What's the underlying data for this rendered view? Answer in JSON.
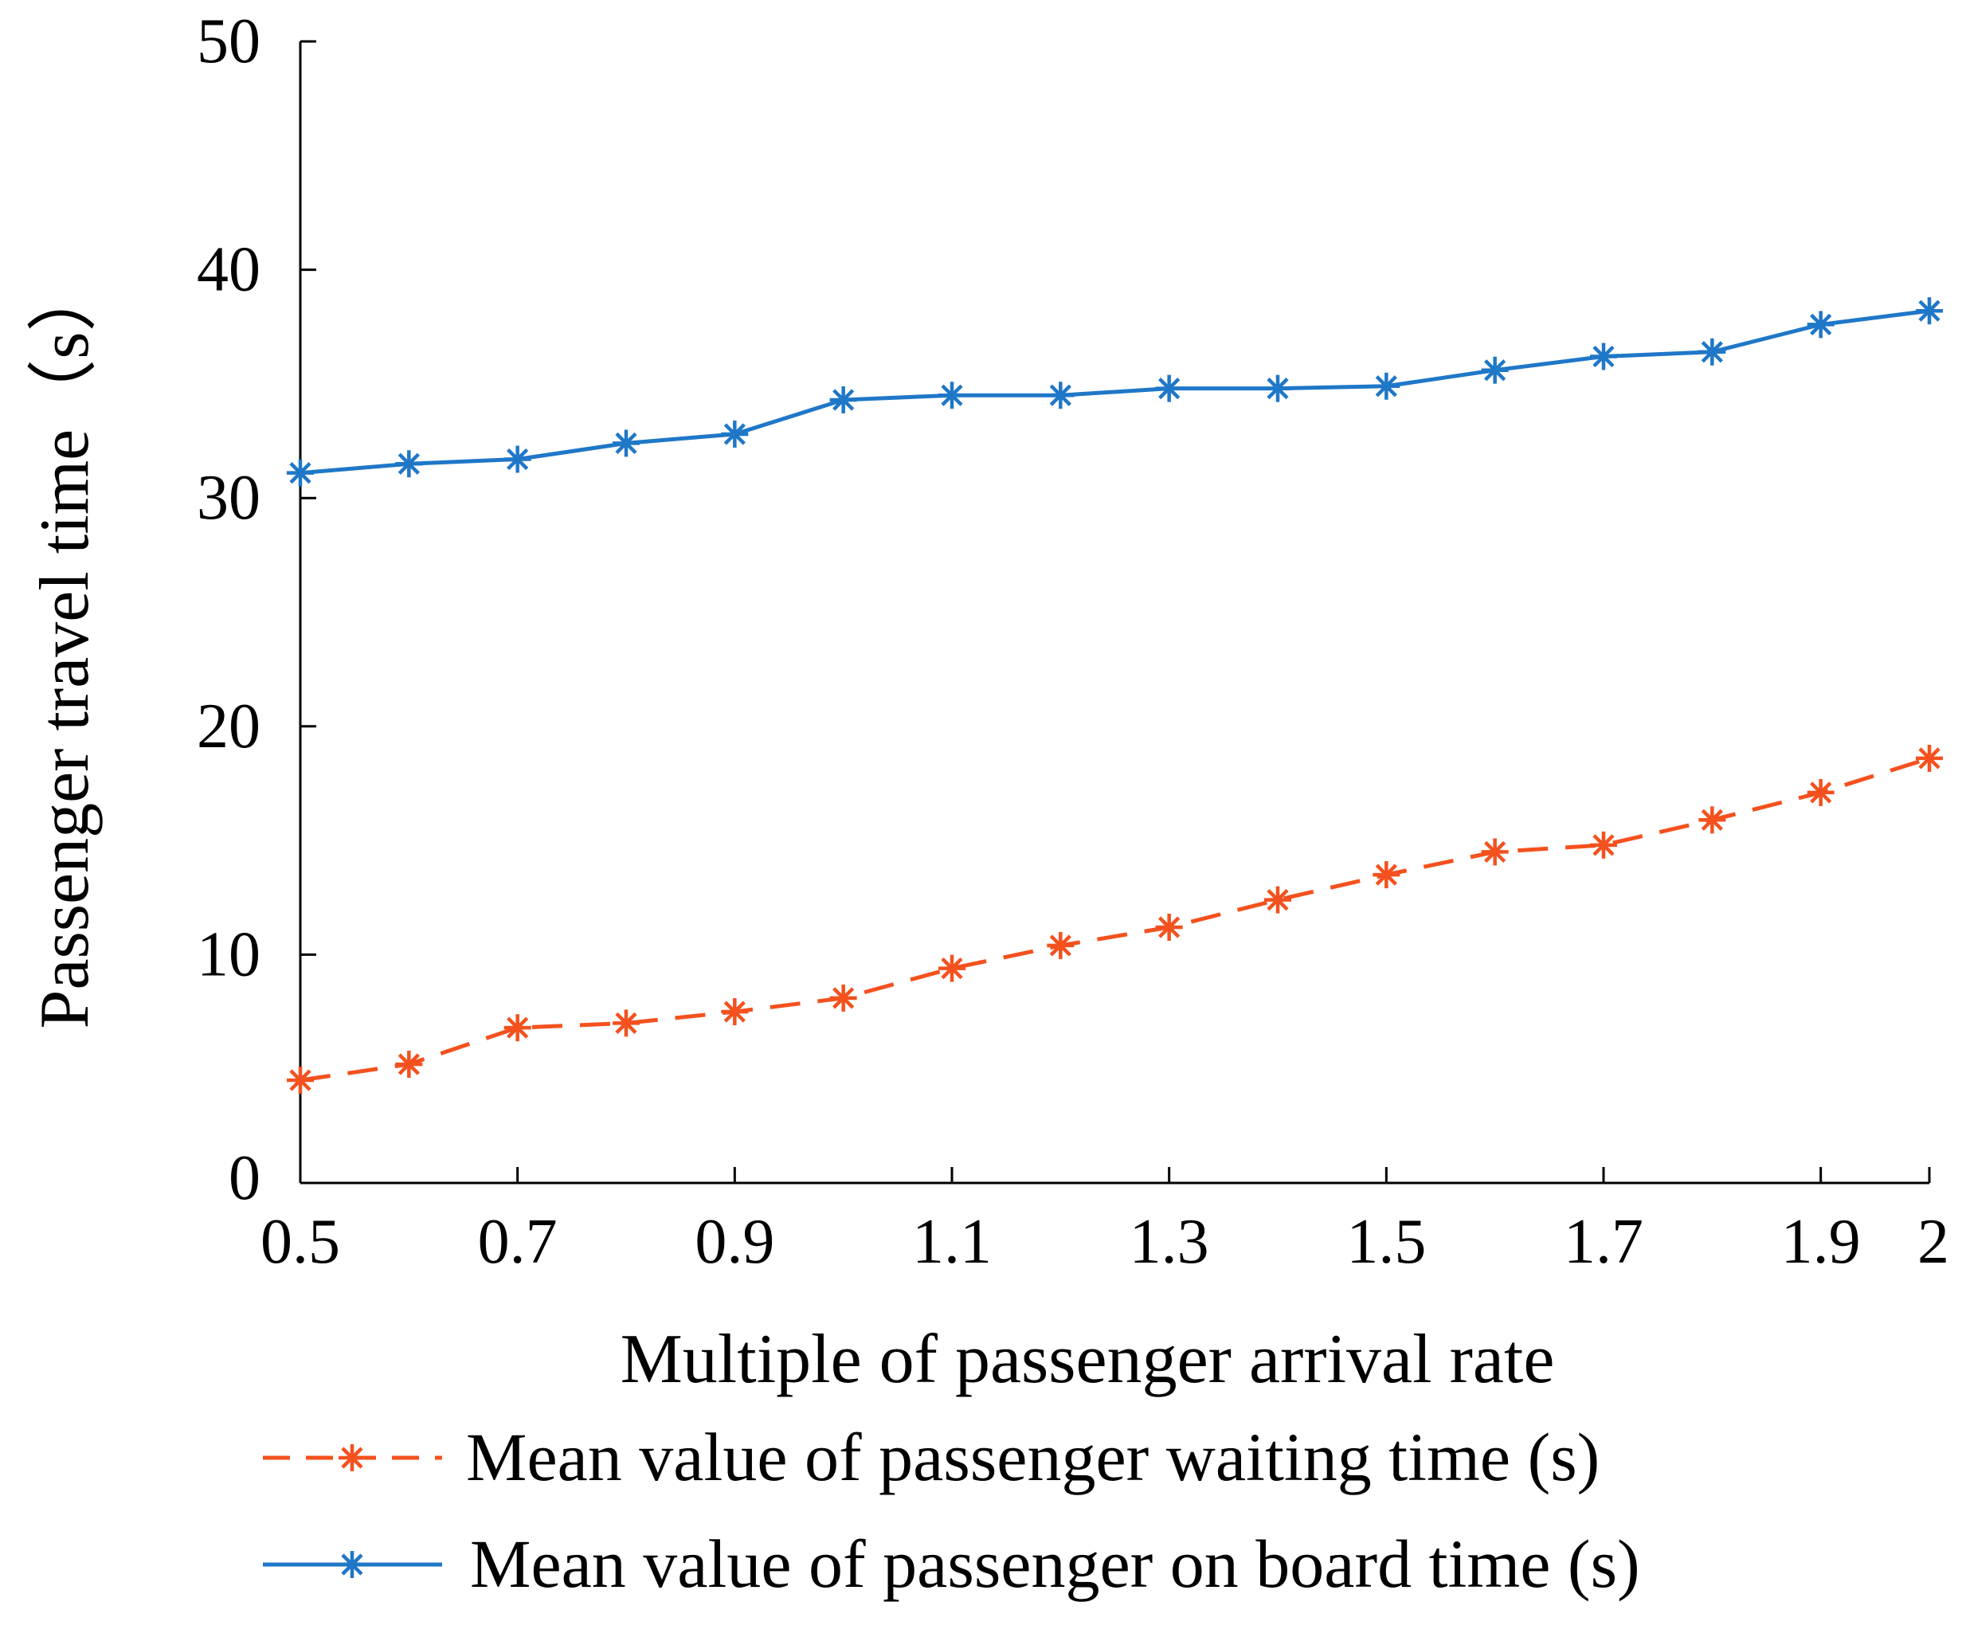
{
  "chart_data": {
    "type": "line",
    "title": "",
    "xlabel": "Multiple of passenger arrival rate",
    "ylabel": "Passenger travel time（s）",
    "xlim": [
      0.5,
      2.0
    ],
    "ylim": [
      0,
      50
    ],
    "grid": false,
    "legend_position": "bottom",
    "x_ticks": [
      0.5,
      0.7,
      0.9,
      1.1,
      1.3,
      1.5,
      1.7,
      1.9,
      2
    ],
    "x_tick_labels": [
      "0.5",
      "0.7",
      "0.9",
      "1.1",
      "1.3",
      "1.5",
      "1.7",
      "1.9",
      "2"
    ],
    "y_ticks": [
      0,
      10,
      20,
      30,
      40,
      50
    ],
    "y_tick_labels": [
      "0",
      "10",
      "20",
      "30",
      "40",
      "50"
    ],
    "x": [
      0.5,
      0.6,
      0.7,
      0.8,
      0.9,
      1.0,
      1.1,
      1.2,
      1.3,
      1.4,
      1.5,
      1.6,
      1.7,
      1.8,
      1.9,
      2.0
    ],
    "series": [
      {
        "name": "Mean value of passenger waiting time (s)",
        "color": "#f4511e",
        "line_style": "dashed",
        "marker": "asterisk",
        "values": [
          4.5,
          5.2,
          6.8,
          7.0,
          7.5,
          8.1,
          9.4,
          10.4,
          11.2,
          12.4,
          13.5,
          14.5,
          14.8,
          15.9,
          17.1,
          18.6
        ]
      },
      {
        "name": "Mean value of passenger on board time (s)",
        "color": "#1f77c8",
        "line_style": "solid",
        "marker": "asterisk",
        "values": [
          31.1,
          31.5,
          31.7,
          32.4,
          32.8,
          34.3,
          34.5,
          34.5,
          34.8,
          34.8,
          34.9,
          35.6,
          36.2,
          36.4,
          37.6,
          38.2
        ]
      }
    ]
  }
}
